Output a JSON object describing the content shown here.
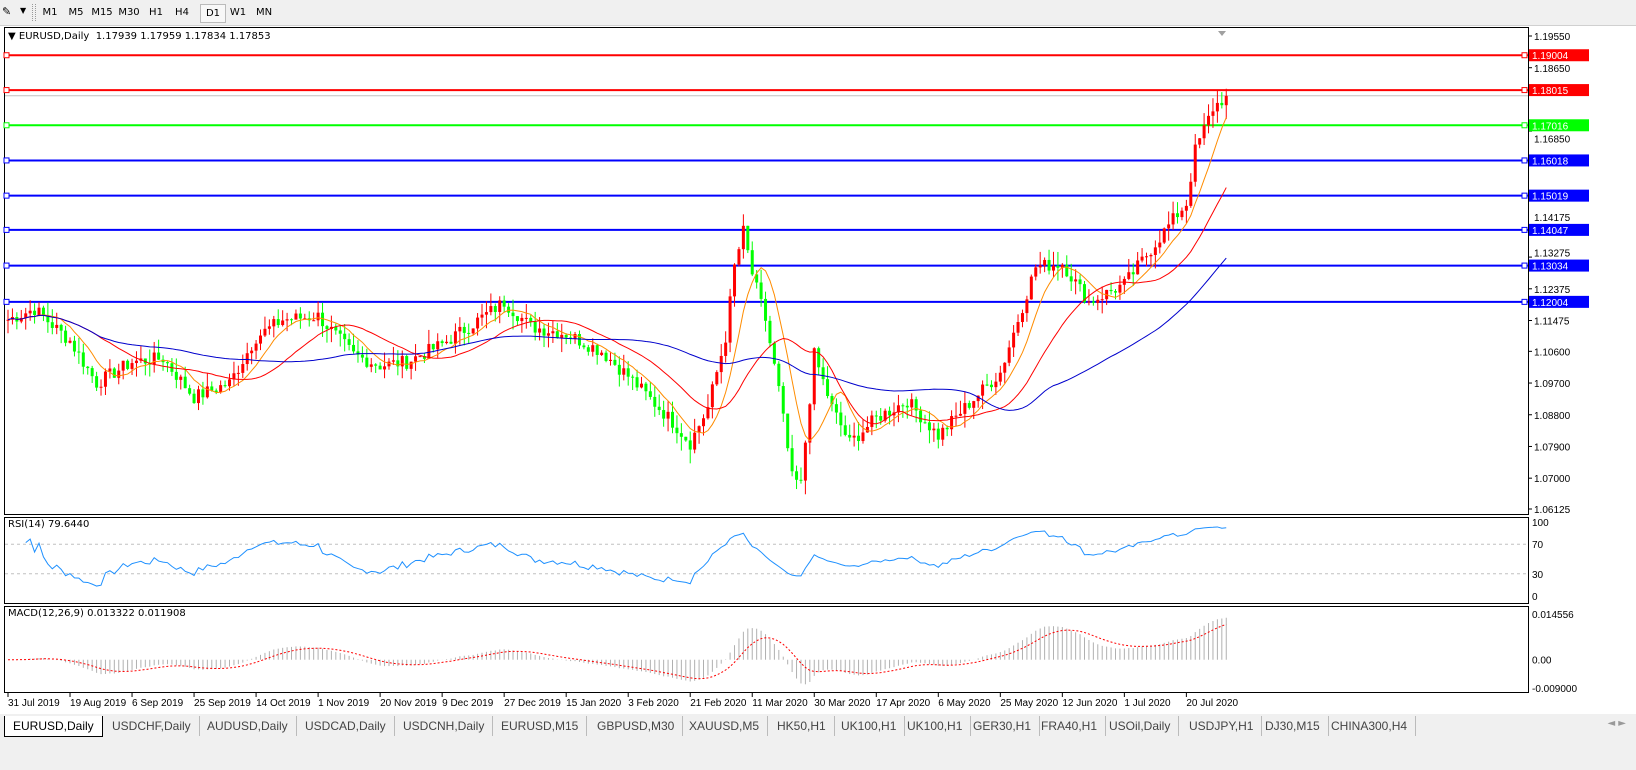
{
  "toolbar": {
    "timeframes": [
      "M1",
      "M5",
      "M15",
      "M30",
      "H1",
      "H4",
      "D1",
      "W1",
      "MN"
    ],
    "active": "D1"
  },
  "chart_info": {
    "symbol": "EURUSD,Daily",
    "ohlc": "1.17939 1.17959 1.17834 1.17853"
  },
  "rsi_label": "RSI(14) 79.6440",
  "macd_label": "MACD(12,26,9) 0.013322 0.011908",
  "tabs": [
    "EURUSD,Daily",
    "USDCHF,Daily",
    "AUDUSD,Daily",
    "USDCAD,Daily",
    "USDCNH,Daily",
    "EURUSD,M15",
    "GBPUSD,M30",
    "XAUUSD,M5",
    "HK50,H1",
    "UK100,H1",
    "UK100,H1",
    "GER30,H1",
    "FRA40,H1",
    "USOil,Daily",
    "USDJPY,H1",
    "DJ30,M15",
    "CHINA300,H4"
  ],
  "active_tab": "EURUSD,Daily",
  "colors": {
    "bull": "#ff0000",
    "bear": "#00ff00",
    "ma_fast": "#ff8c00",
    "ma_mid": "#ff0000",
    "ma_slow": "#0000cc",
    "rsi": "#1e90ff",
    "macd_hist": "#b0b0b0",
    "macd_signal": "#ff0000"
  },
  "chart_data": {
    "type": "candlestick",
    "price_axis": {
      "min": 1.06125,
      "max": 1.1955,
      "ticks": [
        "1.19550",
        "1.18650",
        "1.16850",
        "1.14175",
        "1.13275",
        "1.12375",
        "1.11475",
        "1.10600",
        "1.09700",
        "1.08800",
        "1.07900",
        "1.07000",
        "1.06125"
      ]
    },
    "current_price": "1.17853",
    "date_labels": [
      "31 Jul 2019",
      "19 Aug 2019",
      "6 Sep 2019",
      "25 Sep 2019",
      "14 Oct 2019",
      "1 Nov 2019",
      "20 Nov 2019",
      "9 Dec 2019",
      "27 Dec 2019",
      "15 Jan 2020",
      "3 Feb 2020",
      "21 Feb 2020",
      "11 Mar 2020",
      "30 Mar 2020",
      "17 Apr 2020",
      "6 May 2020",
      "25 May 2020",
      "12 Jun 2020",
      "1 Jul 2020",
      "20 Jul 2020"
    ],
    "bars_per_label": 14,
    "close_keyframes": [
      [
        0,
        1.115
      ],
      [
        6,
        1.118
      ],
      [
        14,
        1.109
      ],
      [
        20,
        1.097
      ],
      [
        28,
        1.103
      ],
      [
        35,
        1.104
      ],
      [
        42,
        1.093
      ],
      [
        50,
        1.097
      ],
      [
        56,
        1.11
      ],
      [
        62,
        1.115
      ],
      [
        70,
        1.116
      ],
      [
        78,
        1.105
      ],
      [
        84,
        1.102
      ],
      [
        90,
        1.103
      ],
      [
        98,
        1.108
      ],
      [
        104,
        1.113
      ],
      [
        112,
        1.12
      ],
      [
        118,
        1.113
      ],
      [
        126,
        1.111
      ],
      [
        134,
        1.106
      ],
      [
        140,
        1.099
      ],
      [
        150,
        1.086
      ],
      [
        154,
        1.08
      ],
      [
        158,
        1.09
      ],
      [
        162,
        1.11
      ],
      [
        164,
        1.13
      ],
      [
        166,
        1.14
      ],
      [
        168,
        1.128
      ],
      [
        171,
        1.115
      ],
      [
        174,
        1.095
      ],
      [
        177,
        1.07
      ],
      [
        179,
        1.068
      ],
      [
        182,
        1.105
      ],
      [
        186,
        1.09
      ],
      [
        190,
        1.08
      ],
      [
        196,
        1.087
      ],
      [
        203,
        1.092
      ],
      [
        210,
        1.082
      ],
      [
        216,
        1.09
      ],
      [
        224,
        1.1
      ],
      [
        228,
        1.115
      ],
      [
        232,
        1.13
      ],
      [
        238,
        1.131
      ],
      [
        244,
        1.12
      ],
      [
        252,
        1.125
      ],
      [
        258,
        1.135
      ],
      [
        264,
        1.145
      ],
      [
        266,
        1.148
      ],
      [
        268,
        1.163
      ],
      [
        272,
        1.175
      ],
      [
        275,
        1.1785
      ]
    ],
    "moving_averages": [
      {
        "period": 8,
        "color": "ma_fast"
      },
      {
        "period": 21,
        "color": "ma_mid"
      },
      {
        "period": 55,
        "color": "ma_slow"
      }
    ],
    "horizontal_lines": [
      {
        "price": "1.19004",
        "color": "#ff0000"
      },
      {
        "price": "1.18015",
        "color": "#ff0000"
      },
      {
        "price": "1.17016",
        "color": "#00ff00"
      },
      {
        "price": "1.16018",
        "color": "#0000ff"
      },
      {
        "price": "1.15019",
        "color": "#0000ff"
      },
      {
        "price": "1.14047",
        "color": "#0000ff"
      },
      {
        "price": "1.13034",
        "color": "#0000ff"
      },
      {
        "price": "1.12004",
        "color": "#0000ff"
      }
    ],
    "rsi": {
      "period": 14,
      "levels": [
        70,
        30
      ],
      "axis_labels": [
        "100",
        "70",
        "30",
        "0"
      ]
    },
    "macd": {
      "fast": 12,
      "slow": 26,
      "signal": 9,
      "axis_labels": [
        "0.014556",
        "0.00",
        "-0.009000"
      ],
      "range": [
        -0.009,
        0.014556
      ]
    }
  }
}
